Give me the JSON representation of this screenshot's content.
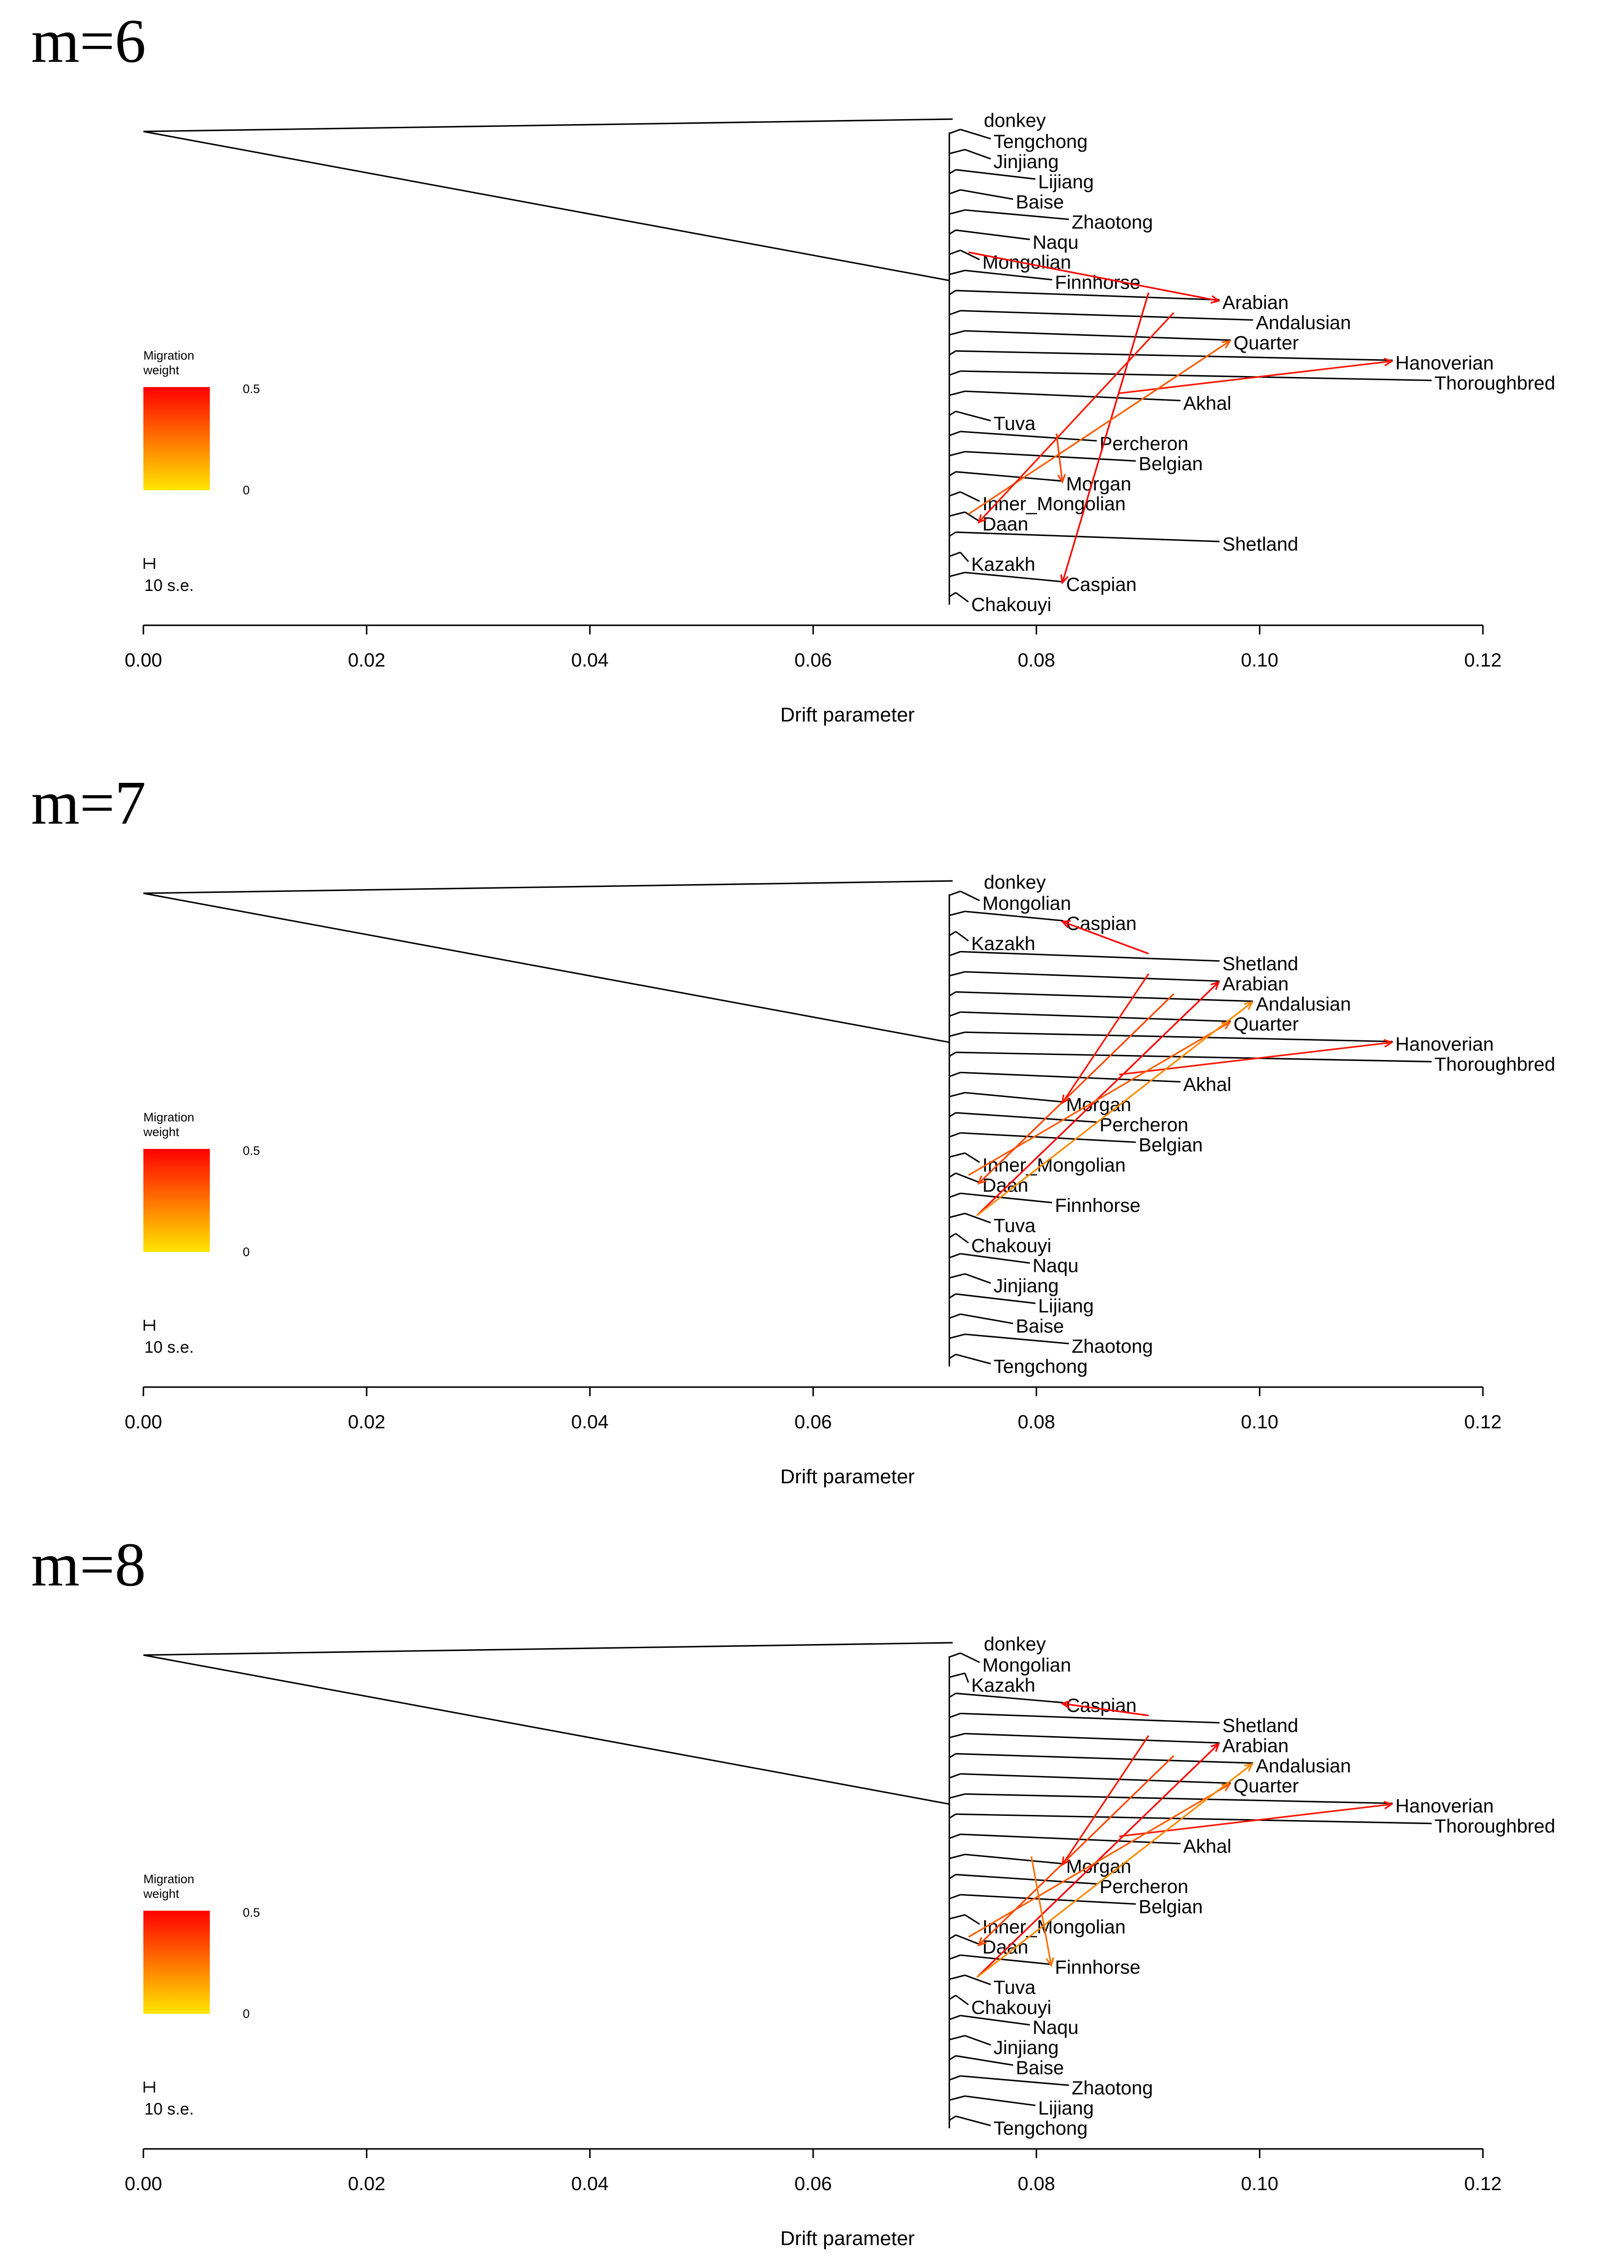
{
  "chart_data": [
    {
      "type": "tree",
      "title": "m=6",
      "xlabel": "Drift parameter",
      "xlim": [
        0,
        0.12
      ],
      "ticks": [
        "0.00",
        "0.02",
        "0.04",
        "0.06",
        "0.08",
        "0.10",
        "0.12"
      ],
      "tick_values": [
        0,
        0.02,
        0.04,
        0.06,
        0.08,
        0.1,
        0.12
      ],
      "legend": {
        "title_line1": "Migration",
        "title_line2": "weight",
        "max_label": "0.5",
        "min_label": "0",
        "colors": [
          "#ff0000",
          "#ffe600"
        ]
      },
      "scale_bar_label": "10 s.e.",
      "leaves": [
        {
          "name": "donkey",
          "drift": 0.0725
        },
        {
          "name": "Tengchong",
          "drift": 0.0755
        },
        {
          "name": "Jinjiang",
          "drift": 0.0755
        },
        {
          "name": "Lijiang",
          "drift": 0.0795
        },
        {
          "name": "Baise",
          "drift": 0.0775
        },
        {
          "name": "Zhaotong",
          "drift": 0.0825
        },
        {
          "name": "Naqu",
          "drift": 0.079
        },
        {
          "name": "Mongolian",
          "drift": 0.0745
        },
        {
          "name": "Finnhorse",
          "drift": 0.081
        },
        {
          "name": "Arabian",
          "drift": 0.096
        },
        {
          "name": "Andalusian",
          "drift": 0.099
        },
        {
          "name": "Quarter",
          "drift": 0.097
        },
        {
          "name": "Hanoverian",
          "drift": 0.1115
        },
        {
          "name": "Thoroughbred",
          "drift": 0.115
        },
        {
          "name": "Akhal",
          "drift": 0.0925
        },
        {
          "name": "Tuva",
          "drift": 0.0755
        },
        {
          "name": "Percheron",
          "drift": 0.085
        },
        {
          "name": "Belgian",
          "drift": 0.0885
        },
        {
          "name": "Morgan",
          "drift": 0.082
        },
        {
          "name": "Inner_Mongolian",
          "drift": 0.0745
        },
        {
          "name": "Daan",
          "drift": 0.0745
        },
        {
          "name": "Shetland",
          "drift": 0.096
        },
        {
          "name": "Kazakh",
          "drift": 0.0735
        },
        {
          "name": "Caspian",
          "drift": 0.082
        },
        {
          "name": "Chakouyi",
          "drift": 0.0735
        }
      ],
      "migration_edges": [
        {
          "from": "Mongolian",
          "to": "Arabian",
          "weight": 0.5
        },
        {
          "from": "Arabian",
          "to": "Caspian",
          "weight": 0.5
        },
        {
          "from": "Akhal",
          "to": "Hanoverian",
          "weight": 0.45
        },
        {
          "from": "Daan",
          "to": "Quarter",
          "weight": 0.3
        },
        {
          "from": "Andalusian",
          "to": "Daan",
          "weight": 0.45
        },
        {
          "from": "Percheron",
          "to": "Morgan",
          "weight": 0.35
        }
      ]
    },
    {
      "type": "tree",
      "title": "m=7",
      "xlabel": "Drift parameter",
      "xlim": [
        0,
        0.12
      ],
      "ticks": [
        "0.00",
        "0.02",
        "0.04",
        "0.06",
        "0.08",
        "0.10",
        "0.12"
      ],
      "tick_values": [
        0,
        0.02,
        0.04,
        0.06,
        0.08,
        0.1,
        0.12
      ],
      "legend": {
        "title_line1": "Migration",
        "title_line2": "weight",
        "max_label": "0.5",
        "min_label": "0",
        "colors": [
          "#ff0000",
          "#ffe600"
        ]
      },
      "scale_bar_label": "10 s.e.",
      "leaves": [
        {
          "name": "donkey",
          "drift": 0.0725
        },
        {
          "name": "Mongolian",
          "drift": 0.0745
        },
        {
          "name": "Caspian",
          "drift": 0.082
        },
        {
          "name": "Kazakh",
          "drift": 0.0735
        },
        {
          "name": "Shetland",
          "drift": 0.096
        },
        {
          "name": "Arabian",
          "drift": 0.096
        },
        {
          "name": "Andalusian",
          "drift": 0.099
        },
        {
          "name": "Quarter",
          "drift": 0.097
        },
        {
          "name": "Hanoverian",
          "drift": 0.1115
        },
        {
          "name": "Thoroughbred",
          "drift": 0.115
        },
        {
          "name": "Akhal",
          "drift": 0.0925
        },
        {
          "name": "Morgan",
          "drift": 0.082
        },
        {
          "name": "Percheron",
          "drift": 0.085
        },
        {
          "name": "Belgian",
          "drift": 0.0885
        },
        {
          "name": "Inner_Mongolian",
          "drift": 0.0745
        },
        {
          "name": "Daan",
          "drift": 0.0745
        },
        {
          "name": "Finnhorse",
          "drift": 0.081
        },
        {
          "name": "Tuva",
          "drift": 0.0755
        },
        {
          "name": "Chakouyi",
          "drift": 0.0735
        },
        {
          "name": "Naqu",
          "drift": 0.079
        },
        {
          "name": "Jinjiang",
          "drift": 0.0755
        },
        {
          "name": "Lijiang",
          "drift": 0.0795
        },
        {
          "name": "Baise",
          "drift": 0.0775
        },
        {
          "name": "Zhaotong",
          "drift": 0.0825
        },
        {
          "name": "Tengchong",
          "drift": 0.0755
        }
      ],
      "migration_edges": [
        {
          "from": "Shetland",
          "to": "Caspian",
          "weight": 0.5
        },
        {
          "from": "Tuva",
          "to": "Arabian",
          "weight": 0.5
        },
        {
          "from": "Akhal",
          "to": "Hanoverian",
          "weight": 0.45
        },
        {
          "from": "Daan",
          "to": "Quarter",
          "weight": 0.3
        },
        {
          "from": "Andalusian",
          "to": "Daan",
          "weight": 0.35
        },
        {
          "from": "Arabian",
          "to": "Morgan",
          "weight": 0.45
        },
        {
          "from": "Tuva",
          "to": "Andalusian",
          "weight": 0.2
        }
      ]
    },
    {
      "type": "tree",
      "title": "m=8",
      "xlabel": "Drift parameter",
      "xlim": [
        0,
        0.12
      ],
      "ticks": [
        "0.00",
        "0.02",
        "0.04",
        "0.06",
        "0.08",
        "0.10",
        "0.12"
      ],
      "tick_values": [
        0,
        0.02,
        0.04,
        0.06,
        0.08,
        0.1,
        0.12
      ],
      "legend": {
        "title_line1": "Migration",
        "title_line2": "weight",
        "max_label": "0.5",
        "min_label": "0",
        "colors": [
          "#ff0000",
          "#ffe600"
        ]
      },
      "scale_bar_label": "10 s.e.",
      "leaves": [
        {
          "name": "donkey",
          "drift": 0.0725
        },
        {
          "name": "Mongolian",
          "drift": 0.0745
        },
        {
          "name": "Kazakh",
          "drift": 0.0735
        },
        {
          "name": "Caspian",
          "drift": 0.082
        },
        {
          "name": "Shetland",
          "drift": 0.096
        },
        {
          "name": "Arabian",
          "drift": 0.096
        },
        {
          "name": "Andalusian",
          "drift": 0.099
        },
        {
          "name": "Quarter",
          "drift": 0.097
        },
        {
          "name": "Hanoverian",
          "drift": 0.1115
        },
        {
          "name": "Thoroughbred",
          "drift": 0.115
        },
        {
          "name": "Akhal",
          "drift": 0.0925
        },
        {
          "name": "Morgan",
          "drift": 0.082
        },
        {
          "name": "Percheron",
          "drift": 0.085
        },
        {
          "name": "Belgian",
          "drift": 0.0885
        },
        {
          "name": "Inner_Mongolian",
          "drift": 0.0745
        },
        {
          "name": "Daan",
          "drift": 0.0745
        },
        {
          "name": "Finnhorse",
          "drift": 0.081
        },
        {
          "name": "Tuva",
          "drift": 0.0755
        },
        {
          "name": "Chakouyi",
          "drift": 0.0735
        },
        {
          "name": "Naqu",
          "drift": 0.079
        },
        {
          "name": "Jinjiang",
          "drift": 0.0755
        },
        {
          "name": "Baise",
          "drift": 0.0775
        },
        {
          "name": "Zhaotong",
          "drift": 0.0825
        },
        {
          "name": "Lijiang",
          "drift": 0.0795
        },
        {
          "name": "Tengchong",
          "drift": 0.0755
        }
      ],
      "migration_edges": [
        {
          "from": "Shetland",
          "to": "Caspian",
          "weight": 0.5
        },
        {
          "from": "Tuva",
          "to": "Arabian",
          "weight": 0.5
        },
        {
          "from": "Akhal",
          "to": "Hanoverian",
          "weight": 0.45
        },
        {
          "from": "Daan",
          "to": "Quarter",
          "weight": 0.3
        },
        {
          "from": "Andalusian",
          "to": "Daan",
          "weight": 0.35
        },
        {
          "from": "Arabian",
          "to": "Morgan",
          "weight": 0.45
        },
        {
          "from": "Tuva",
          "to": "Andalusian",
          "weight": 0.2
        },
        {
          "from": "Morgan",
          "to": "Finnhorse",
          "weight": 0.25
        }
      ]
    }
  ]
}
